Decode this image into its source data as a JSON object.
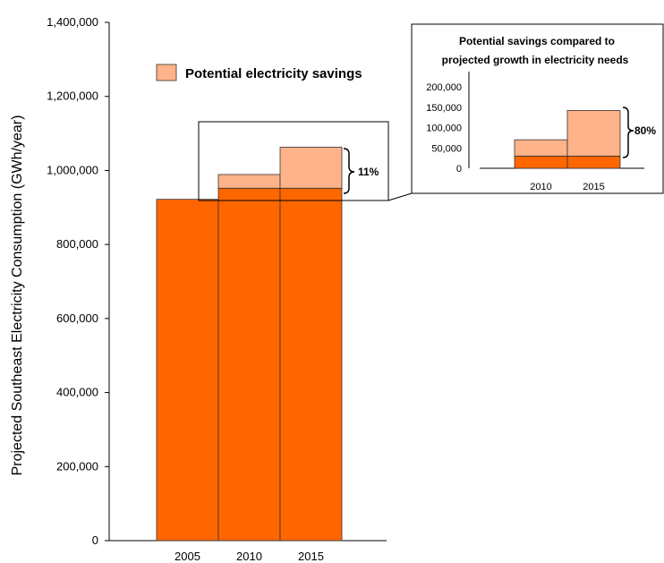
{
  "chart_data": [
    {
      "type": "bar",
      "ylabel": "Projected Southeast Electricity Consumption (GWh/year)",
      "ylim": [
        0,
        1400000
      ],
      "yticks": [
        "0",
        "200,000",
        "400,000",
        "600,000",
        "800,000",
        "1,000,000",
        "1,200,000",
        "1,400,000"
      ],
      "ytick_values": [
        0,
        200000,
        400000,
        600000,
        800000,
        1000000,
        1200000,
        1400000
      ],
      "categories": [
        "2005",
        "2010",
        "2015"
      ],
      "series": [
        {
          "values": [
            922000,
            952000,
            952000
          ],
          "color": "#ff6600"
        },
        {
          "name": "Potential electricity savings",
          "values": [
            0,
            37000,
            111000
          ],
          "color": "#ffb38a"
        }
      ],
      "legend": {
        "label": "Potential electricity savings",
        "position": "top-center"
      },
      "annotation": "11%"
    },
    {
      "type": "bar",
      "title": "Potential savings compared to projected growth in electricity needs",
      "ylim": [
        0,
        200000
      ],
      "yticks": [
        "0",
        "50,000",
        "100,000",
        "150,000",
        "200,000"
      ],
      "ytick_values": [
        0,
        50000,
        100000,
        150000,
        200000
      ],
      "categories": [
        "2010",
        "2015"
      ],
      "series": [
        {
          "values": [
            30000,
            30000
          ],
          "color": "#ff6600"
        },
        {
          "values": [
            40000,
            112000
          ],
          "color": "#ffb38a"
        }
      ],
      "annotation": "80%"
    }
  ]
}
